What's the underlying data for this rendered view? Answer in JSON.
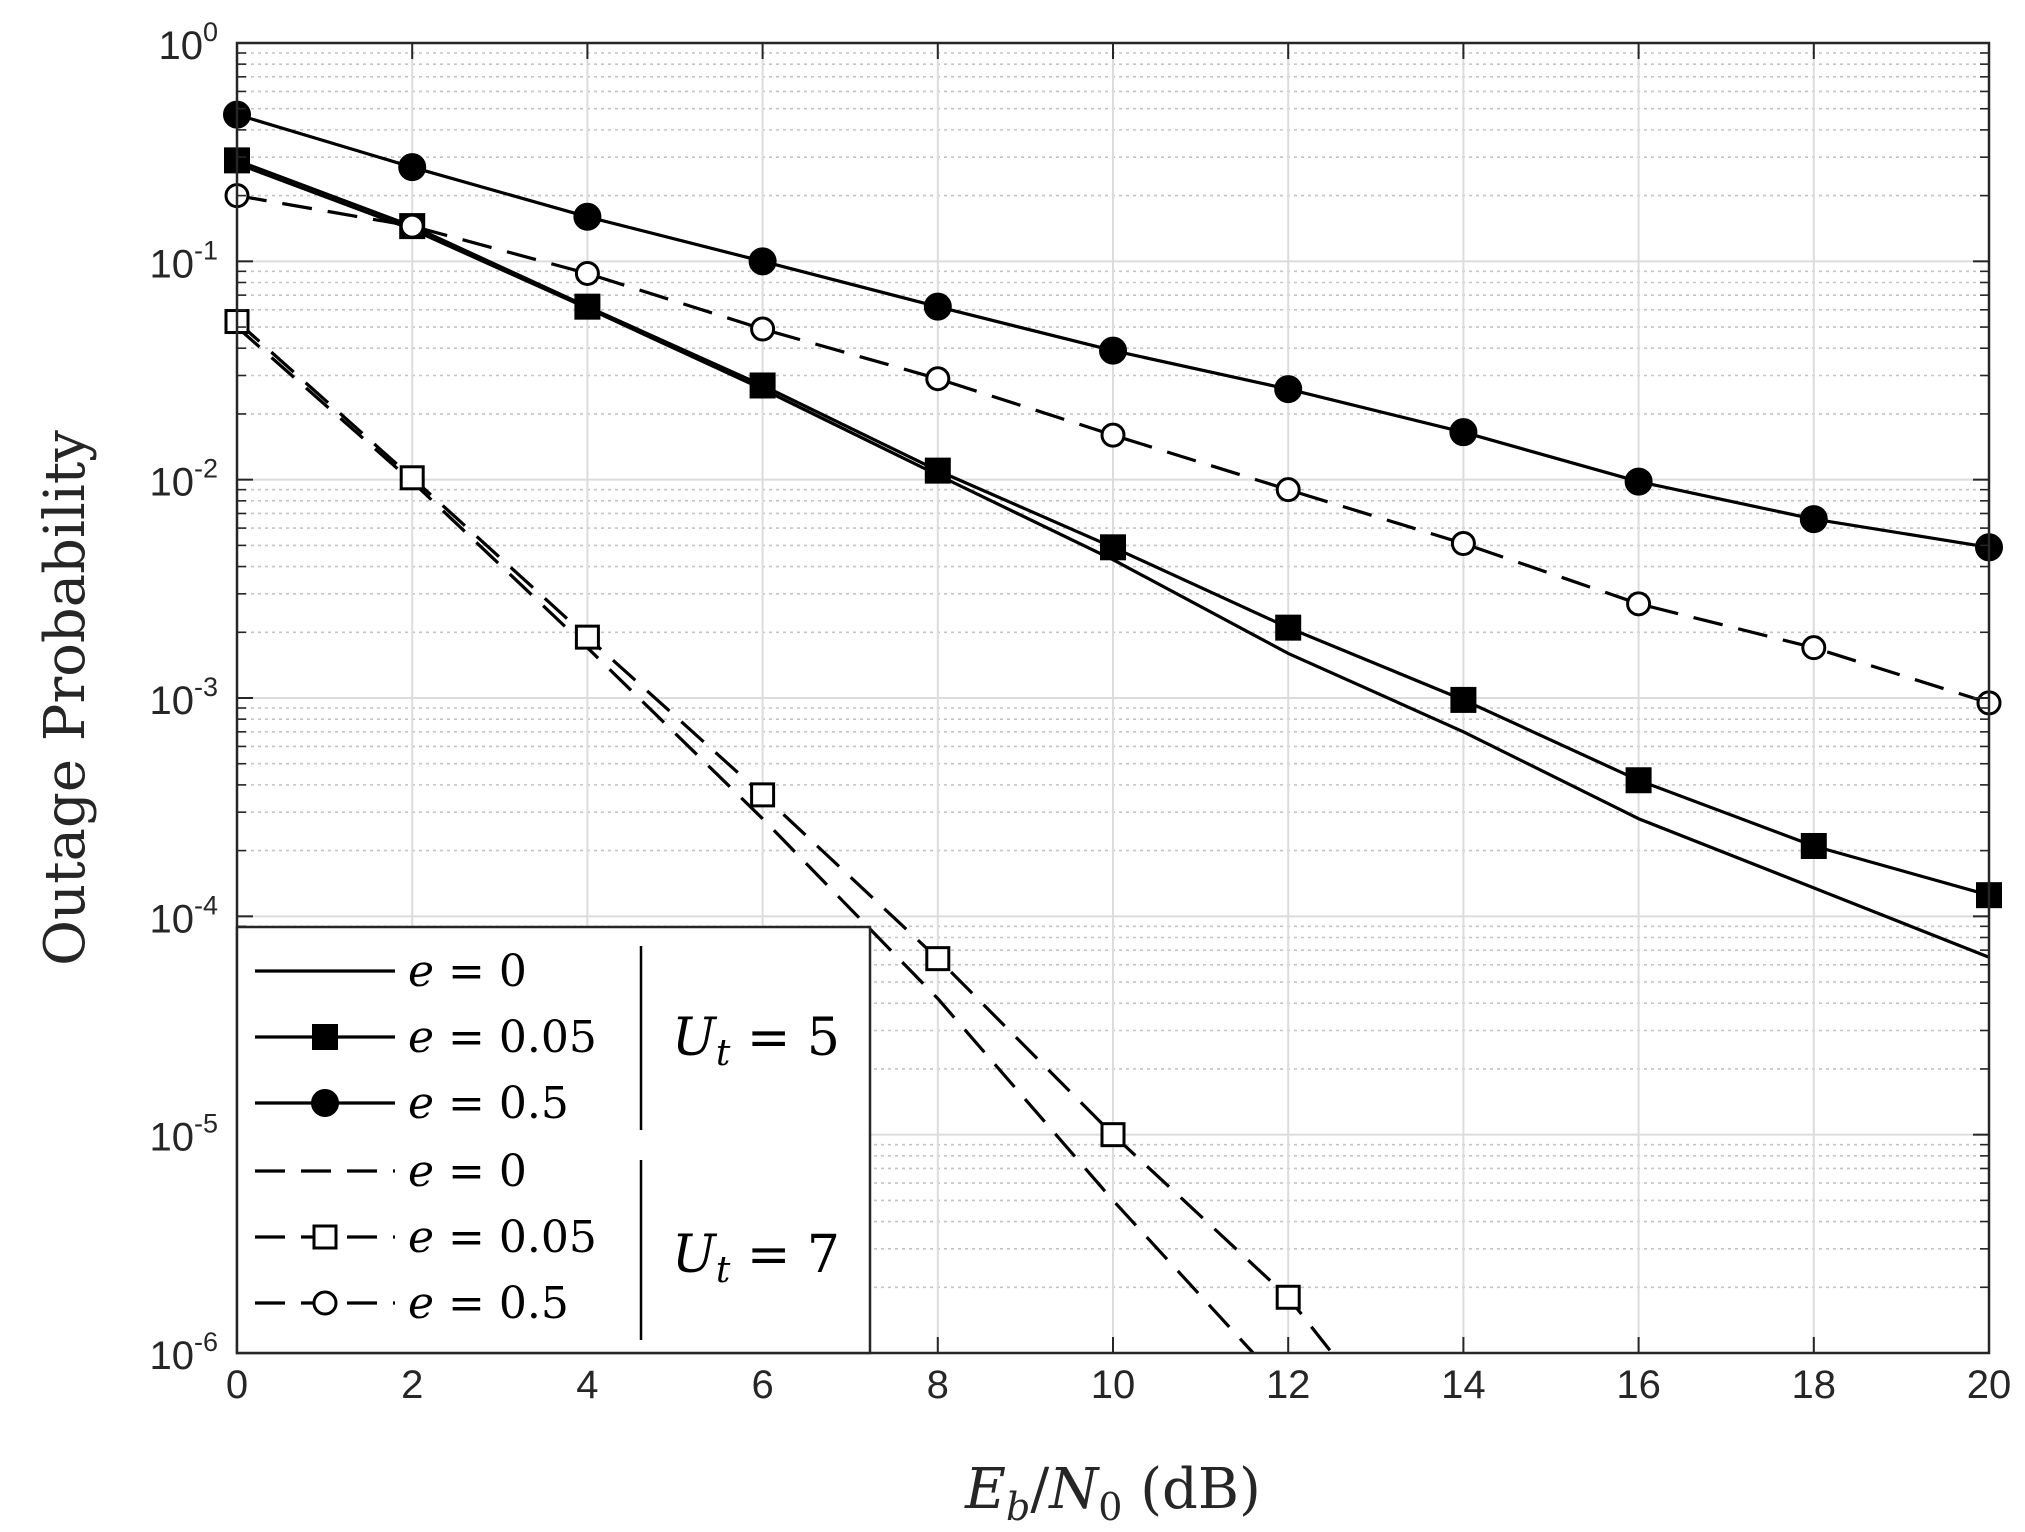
{
  "chart_data": {
    "type": "line",
    "title": "",
    "xlabel": "E_b/N_0 (dB)",
    "xlabel_parts": {
      "E": "E",
      "b": "b",
      "slash": "/",
      "N": "N",
      "zero": "0",
      "unit": " (dB)"
    },
    "ylabel": "Outage Probability",
    "x_scale": "linear",
    "y_scale": "log",
    "xlim": [
      0,
      20
    ],
    "ylim": [
      1e-06,
      1
    ],
    "grid": true,
    "minor_grid": true,
    "x_ticks": [
      0,
      2,
      4,
      6,
      8,
      10,
      12,
      14,
      16,
      18,
      20
    ],
    "x_tick_labels": [
      "0",
      "2",
      "4",
      "6",
      "8",
      "10",
      "12",
      "14",
      "16",
      "18",
      "20"
    ],
    "y_ticks": [
      1,
      0.1,
      0.01,
      0.001,
      0.0001,
      1e-05,
      1e-06
    ],
    "y_tick_labels": [
      {
        "base": "10",
        "exp": "0"
      },
      {
        "base": "10",
        "exp": "-1"
      },
      {
        "base": "10",
        "exp": "-2"
      },
      {
        "base": "10",
        "exp": "-3"
      },
      {
        "base": "10",
        "exp": "-4"
      },
      {
        "base": "10",
        "exp": "-5"
      },
      {
        "base": "10",
        "exp": "-6"
      }
    ],
    "legend_position": "bottom-left",
    "series": [
      {
        "name": "e = 0 (U_t = 5)",
        "group": "U_t = 5",
        "line": "solid",
        "marker": "none",
        "x": [
          0,
          2,
          4,
          6,
          8,
          10,
          12,
          14,
          16,
          18,
          20
        ],
        "values": [
          0.28,
          0.14,
          0.061,
          0.026,
          0.0105,
          0.0043,
          0.0016,
          0.0007,
          0.00028,
          0.000135,
          6.5e-05
        ]
      },
      {
        "name": "e = 0.05 (U_t = 5)",
        "group": "U_t = 5",
        "line": "solid",
        "marker": "square-filled",
        "x": [
          0,
          2,
          4,
          6,
          8,
          10,
          12,
          14,
          16,
          18,
          20
        ],
        "values": [
          0.29,
          0.145,
          0.062,
          0.027,
          0.011,
          0.0049,
          0.0021,
          0.00098,
          0.00042,
          0.00021,
          0.000125
        ]
      },
      {
        "name": "e = 0.5 (U_t = 5)",
        "group": "U_t = 5",
        "line": "solid",
        "marker": "circle-filled",
        "x": [
          0,
          2,
          4,
          6,
          8,
          10,
          12,
          14,
          16,
          18,
          20
        ],
        "values": [
          0.47,
          0.27,
          0.16,
          0.1,
          0.062,
          0.039,
          0.026,
          0.0165,
          0.0098,
          0.0066,
          0.0049
        ]
      },
      {
        "name": "e = 0 (U_t = 7)",
        "group": "U_t = 7",
        "line": "dashed",
        "marker": "none",
        "x": [
          0,
          2,
          4,
          6,
          8,
          10,
          11.6
        ],
        "values": [
          0.05,
          0.0098,
          0.0017,
          0.00028,
          4.2e-05,
          5e-06,
          1e-06
        ]
      },
      {
        "name": "e = 0.05 (U_t = 7)",
        "group": "U_t = 7",
        "line": "dashed",
        "marker": "square-open",
        "x": [
          0,
          2,
          4,
          6,
          8,
          10,
          12,
          12.5
        ],
        "values": [
          0.053,
          0.0102,
          0.0019,
          0.00036,
          6.4e-05,
          1e-05,
          1.8e-06,
          1e-06
        ]
      },
      {
        "name": "e = 0.5 (U_t = 7)",
        "group": "U_t = 7",
        "line": "dashed",
        "marker": "circle-open",
        "x": [
          0,
          2,
          4,
          6,
          8,
          10,
          12,
          14,
          16,
          18,
          20
        ],
        "values": [
          0.2,
          0.145,
          0.088,
          0.049,
          0.029,
          0.016,
          0.009,
          0.0051,
          0.0027,
          0.0017,
          0.00095
        ]
      }
    ],
    "legend": {
      "entries": [
        {
          "lhs": "e",
          "eq": " = ",
          "rhs": "0"
        },
        {
          "lhs": "e",
          "eq": " = ",
          "rhs": "0.05"
        },
        {
          "lhs": "e",
          "eq": " = ",
          "rhs": "0.5"
        },
        {
          "lhs": "e",
          "eq": " = ",
          "rhs": "0"
        },
        {
          "lhs": "e",
          "eq": " = ",
          "rhs": "0.05"
        },
        {
          "lhs": "e",
          "eq": " = ",
          "rhs": "0.5"
        }
      ],
      "groups": [
        {
          "sym": "U",
          "sub": "t",
          "eq": " = ",
          "val": "5"
        },
        {
          "sym": "U",
          "sub": "t",
          "eq": " = ",
          "val": "7"
        }
      ]
    }
  }
}
